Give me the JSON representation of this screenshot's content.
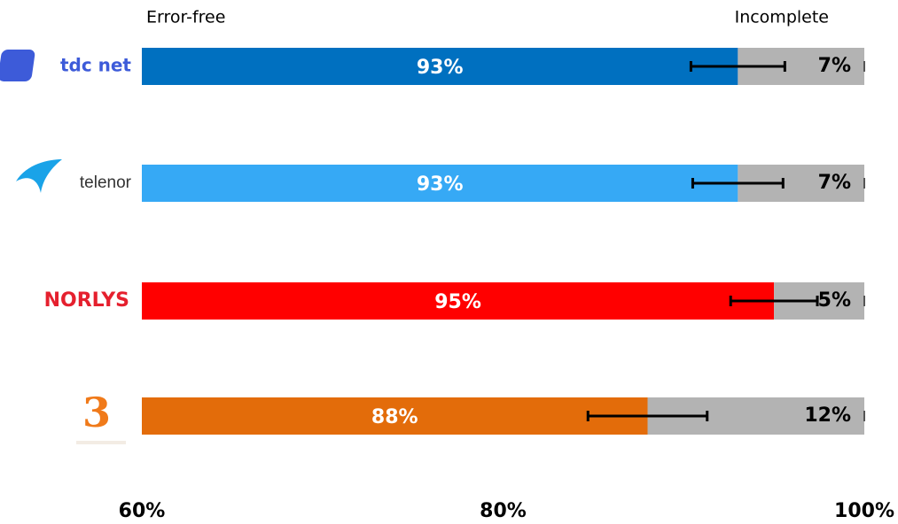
{
  "chart_data": {
    "type": "bar",
    "orientation": "horizontal",
    "categories": [
      "tdc net",
      "telenor",
      "NORLYS",
      "3"
    ],
    "series": [
      {
        "name": "Error-free",
        "colors": [
          "#0070c0",
          "#36a9f5",
          "#ff0000",
          "#e36c0a"
        ],
        "values": [
          93,
          93,
          95,
          88
        ],
        "value_labels": [
          "93%",
          "93%",
          "95%",
          "88%"
        ],
        "errors": [
          2.6,
          2.5,
          2.4,
          3.3
        ]
      },
      {
        "name": "Incomplete",
        "color": "#b3b3b3",
        "values": [
          7,
          7,
          5,
          12
        ],
        "value_labels": [
          "7%",
          "7%",
          "5%",
          "12%"
        ]
      }
    ],
    "xlim": [
      60,
      100
    ],
    "xticks": [
      {
        "value": 60,
        "label": "60%"
      },
      {
        "value": 80,
        "label": "80%"
      },
      {
        "value": 100,
        "label": "100%"
      }
    ]
  }
}
